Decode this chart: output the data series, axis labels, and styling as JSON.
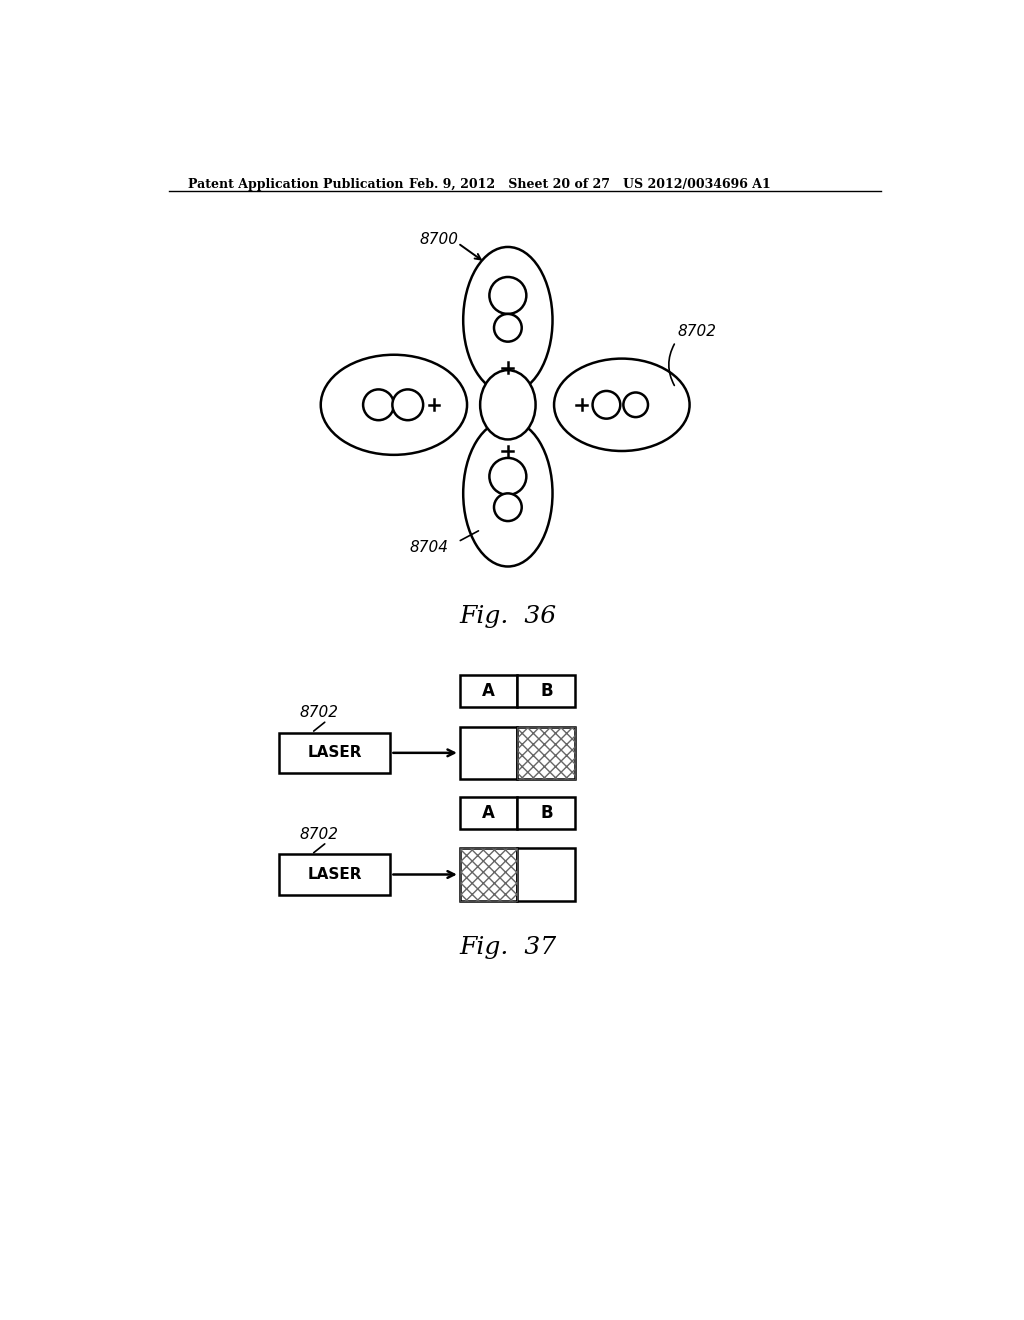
{
  "header_left": "Patent Application Publication",
  "header_mid": "Feb. 9, 2012   Sheet 20 of 27",
  "header_right": "US 2012/0034696 A1",
  "fig36_label": "Fig.  36",
  "fig37_label": "Fig.  37",
  "bg_color": "#ffffff",
  "line_color": "#000000"
}
